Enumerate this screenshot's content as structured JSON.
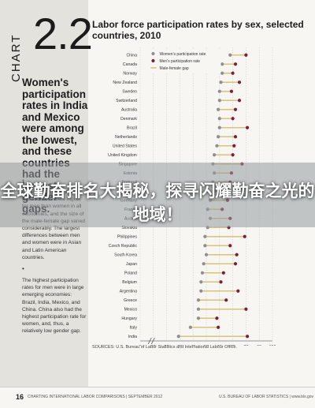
{
  "page": {
    "chart_label": "CHART",
    "chart_number": "2.2",
    "headline": "Women's participation rates in India and Mexico were among the lowest, and these countries had the largest gender gaps.",
    "paragraphs": [
      "Participation rates in the two countries were higher for men than women in all economies, and the size of the male-female gap varied considerably. The largest differences between men and women were in Asian and Latin American countries.",
      "The highest participation rates for men were in large emerging economies: Brazil, India, Mexico, and China. China also had the highest participation rate for women, and, thus, a relatively low gender gap."
    ],
    "banner_title": "全球勤奋排名大揭秘，探寻闪耀勤奋之光的地域！",
    "sources": "SOURCES: U.S. Bureau of Labor Statistics and International Labour Office.",
    "footer": {
      "page_number": "16",
      "left": "CHARTING INTERNATIONAL LABOR COMPARISONS | SEPTEMBER 2012",
      "right": "U.S. BUREAU OF LABOR STATISTICS | www.bls.gov"
    }
  },
  "colors": {
    "women": "#8f8f8f",
    "men": "#7a1f35",
    "gap": "#d6c47a",
    "grid": "#cfcfcf"
  },
  "chart_data": {
    "type": "scatter",
    "title": "Labor force participation rates by sex, selected countries, 2010",
    "xlabel": "Percent",
    "xlim": [
      0,
      100
    ],
    "xticks": [
      0,
      10,
      20,
      30,
      40,
      50,
      60,
      70,
      80,
      90,
      100
    ],
    "axis_break": true,
    "grid": true,
    "legend_position": "top-left",
    "categories": [
      "China",
      "Canada",
      "Norway",
      "New Zealand",
      "Sweden",
      "Switzerland",
      "Australia",
      "Denmark",
      "Brazil",
      "Netherlands",
      "United States",
      "United Kingdom",
      "Singapore",
      "Estonia",
      "Portugal",
      "Finland",
      "Germany",
      "France",
      "Austria",
      "Slovakia",
      "Philippines",
      "Czech Republic",
      "South Korea",
      "Japan",
      "Poland",
      "Belgium",
      "Argentina",
      "Greece",
      "Mexico",
      "Hungary",
      "Italy",
      "India"
    ],
    "series": [
      {
        "name": "Women's participation rate",
        "values": [
          68,
          62,
          62,
          61,
          60,
          60,
          59,
          60,
          60,
          59,
          58,
          56,
          55,
          56,
          55,
          56,
          53,
          51,
          53,
          51,
          49,
          49,
          50,
          48,
          47,
          46,
          46,
          44,
          44,
          44,
          38,
          29
        ]
      },
      {
        "name": "Men's participation rate",
        "values": [
          80,
          72,
          70,
          75,
          69,
          75,
          72,
          70,
          81,
          72,
          71,
          70,
          77,
          69,
          68,
          64,
          66,
          62,
          68,
          67,
          79,
          68,
          73,
          72,
          63,
          61,
          74,
          65,
          80,
          58,
          59,
          81
        ]
      },
      {
        "name": "Male-female gap",
        "values": [
          12,
          10,
          8,
          14,
          9,
          15,
          13,
          10,
          21,
          13,
          13,
          14,
          22,
          13,
          13,
          8,
          13,
          11,
          15,
          16,
          30,
          19,
          23,
          24,
          16,
          15,
          28,
          21,
          36,
          14,
          21,
          52
        ]
      }
    ]
  }
}
